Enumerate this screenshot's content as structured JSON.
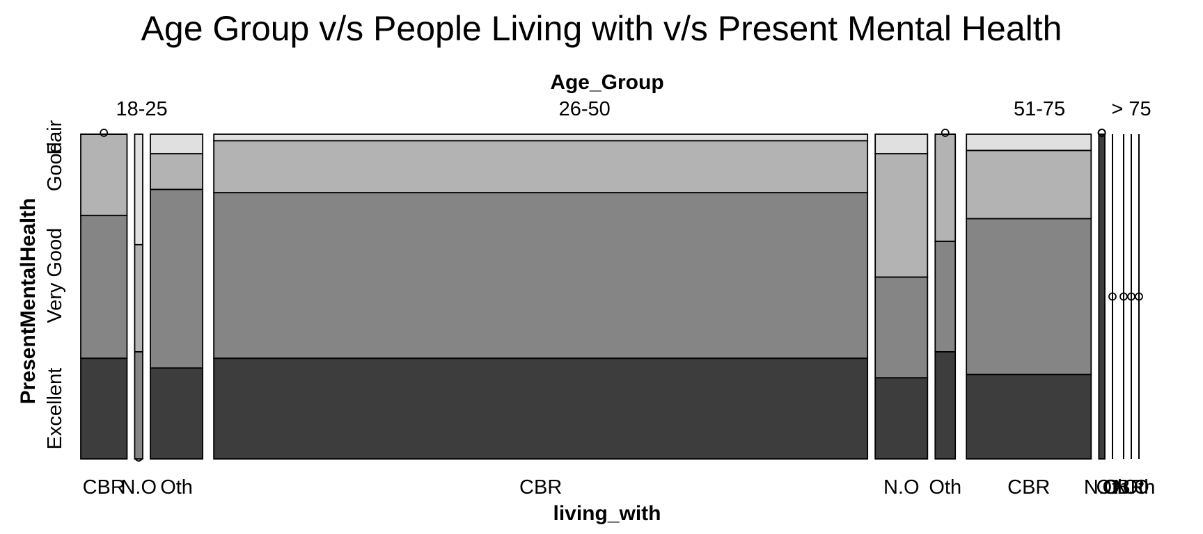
{
  "chart_data": {
    "type": "mosaic",
    "title": "Age Group v/s People Living with v/s Present Mental Health",
    "top_variable": "Age_Group",
    "bottom_variable": "living_with",
    "left_variable": "PresentMentalHealth",
    "health_levels": [
      "Excellent",
      "Very Good",
      "Good",
      "Fair"
    ],
    "colors": {
      "Excellent": "#3d3d3d",
      "Very Good": "#858585",
      "Good": "#b3b3b3",
      "Fair": "#e0e0e0"
    },
    "age_groups": [
      {
        "label": "18-25",
        "cells": [
          {
            "label": "CBR",
            "count": 23,
            "proportions": [
              0.31,
              0.44,
              0.25,
              0
            ]
          },
          {
            "label": "N.O",
            "count": 4,
            "proportions": [
              0,
              0.33,
              0.33,
              0.34
            ]
          },
          {
            "label": "Oth",
            "count": 26,
            "proportions": [
              0.28,
              0.55,
              0.11,
              0.06
            ]
          }
        ]
      },
      {
        "label": "26-50",
        "cells": [
          {
            "label": "CBR",
            "count": 325,
            "proportions": [
              0.31,
              0.51,
              0.16,
              0.02
            ]
          },
          {
            "label": "N.O",
            "count": 26,
            "proportions": [
              0.25,
              0.31,
              0.38,
              0.06
            ]
          },
          {
            "label": "Oth",
            "count": 10,
            "proportions": [
              0.33,
              0.34,
              0.33,
              0
            ]
          }
        ]
      },
      {
        "label": "51-75",
        "cells": [
          {
            "label": "CBR",
            "count": 62,
            "proportions": [
              0.26,
              0.48,
              0.21,
              0.05
            ]
          },
          {
            "label": "N.O",
            "count": 3,
            "proportions": [
              1,
              0,
              0,
              0
            ]
          },
          {
            "label": "Oth",
            "count": 0,
            "proportions": [
              0,
              0,
              0,
              0
            ]
          }
        ]
      },
      {
        "label": "> 75",
        "cells": [
          {
            "label": "CBR",
            "count": 0,
            "proportions": [
              0,
              0,
              0,
              0
            ]
          },
          {
            "label": "N.O",
            "count": 0,
            "proportions": [
              0,
              0,
              0,
              0
            ]
          },
          {
            "label": "Oth",
            "count": 0,
            "proportions": [
              0,
              0,
              0,
              0
            ]
          }
        ]
      }
    ]
  }
}
